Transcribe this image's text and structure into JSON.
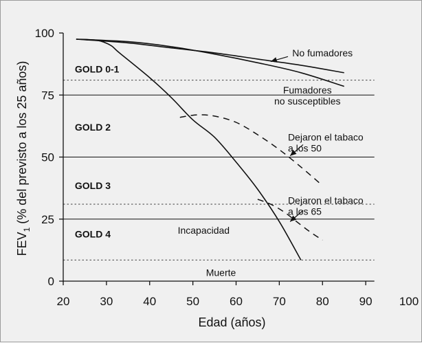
{
  "chart_data": {
    "type": "line",
    "xlabel": "Edad (años)",
    "ylabel": {
      "prefix": "FEV",
      "subscript": "1",
      "suffix": " (% del previsto a los 25 años)"
    },
    "xlim": [
      20,
      100
    ],
    "ylim": [
      0,
      100
    ],
    "x_ticks": [
      20,
      30,
      40,
      50,
      60,
      70,
      80,
      90,
      100
    ],
    "y_ticks": [
      0,
      25,
      50,
      75,
      100
    ],
    "series": [
      {
        "id": "no-fumadores",
        "style": "solid",
        "points": [
          [
            23,
            97.5
          ],
          [
            35,
            96
          ],
          [
            45,
            94
          ],
          [
            55,
            92
          ],
          [
            65,
            89.5
          ],
          [
            75,
            87
          ],
          [
            85,
            84
          ]
        ]
      },
      {
        "id": "fumadores-no-susceptibles",
        "style": "solid",
        "points": [
          [
            23,
            97.5
          ],
          [
            35,
            96.5
          ],
          [
            45,
            94.5
          ],
          [
            55,
            91.5
          ],
          [
            65,
            88
          ],
          [
            75,
            84
          ],
          [
            85,
            78.5
          ]
        ]
      },
      {
        "id": "fumadores-susceptibles",
        "style": "solid",
        "points": [
          [
            23,
            97.5
          ],
          [
            28,
            97
          ],
          [
            31,
            95
          ],
          [
            33,
            92
          ],
          [
            40,
            82
          ],
          [
            45,
            74
          ],
          [
            50,
            65
          ],
          [
            55,
            58
          ],
          [
            60,
            48
          ],
          [
            65,
            37
          ],
          [
            70,
            24
          ],
          [
            75,
            8.5
          ]
        ]
      },
      {
        "id": "dejaron-50",
        "style": "dashed",
        "points": [
          [
            47,
            66
          ],
          [
            51,
            67
          ],
          [
            55,
            66.5
          ],
          [
            60,
            64
          ],
          [
            65,
            59
          ],
          [
            70,
            53
          ],
          [
            75,
            46
          ],
          [
            80,
            38.5
          ]
        ]
      },
      {
        "id": "dejaron-65",
        "style": "dashed",
        "points": [
          [
            65,
            33
          ],
          [
            68,
            31
          ],
          [
            71,
            28
          ],
          [
            74,
            24
          ],
          [
            77,
            20
          ],
          [
            80,
            16.5
          ]
        ]
      }
    ],
    "reference_lines": [
      {
        "y": 81,
        "style": "dotted"
      },
      {
        "y": 75,
        "style": "solid"
      },
      {
        "y": 50,
        "style": "solid"
      },
      {
        "y": 31,
        "style": "dotted"
      },
      {
        "y": 25,
        "style": "solid"
      },
      {
        "y": 8.5,
        "style": "dotted"
      }
    ],
    "zone_labels": [
      {
        "text": "GOLD 0-1",
        "x": 23,
        "y": 85.5
      },
      {
        "text": "GOLD 2",
        "x": 23,
        "y": 62
      },
      {
        "text": "GOLD 3",
        "x": 23,
        "y": 38.5
      },
      {
        "text": "GOLD 4",
        "x": 23,
        "y": 19
      }
    ],
    "annotations": [
      {
        "id": "no-fumadores",
        "lines": [
          "No fumadores"
        ],
        "x": 73,
        "y": 92,
        "anchor": "start",
        "arrow": {
          "from": [
            72,
            90.5
          ],
          "to": [
            68,
            88.5
          ]
        }
      },
      {
        "id": "fumadores-no-susceptibles",
        "lines": [
          "Fumadores",
          "no susceptibles"
        ],
        "x": 76.5,
        "y": 77,
        "anchor": "middle"
      },
      {
        "id": "dejaron-50",
        "lines": [
          "Dejaron el tabaco",
          "a los 50"
        ],
        "x": 72,
        "y": 58,
        "anchor": "start",
        "arrow": {
          "from": [
            75.5,
            55
          ],
          "to": [
            72.5,
            50.5
          ]
        }
      },
      {
        "id": "dejaron-65",
        "lines": [
          "Dejaron el tabaco",
          "a los 65"
        ],
        "x": 72,
        "y": 32.5,
        "anchor": "start",
        "arrow": {
          "from": [
            75.5,
            28.5
          ],
          "to": [
            72.5,
            24
          ]
        }
      },
      {
        "id": "incapacidad",
        "lines": [
          "Incapacidad"
        ],
        "x": 52.5,
        "y": 20.5,
        "anchor": "middle"
      },
      {
        "id": "muerte",
        "lines": [
          "Muerte"
        ],
        "x": 56.5,
        "y": 3.5,
        "anchor": "middle"
      }
    ]
  }
}
